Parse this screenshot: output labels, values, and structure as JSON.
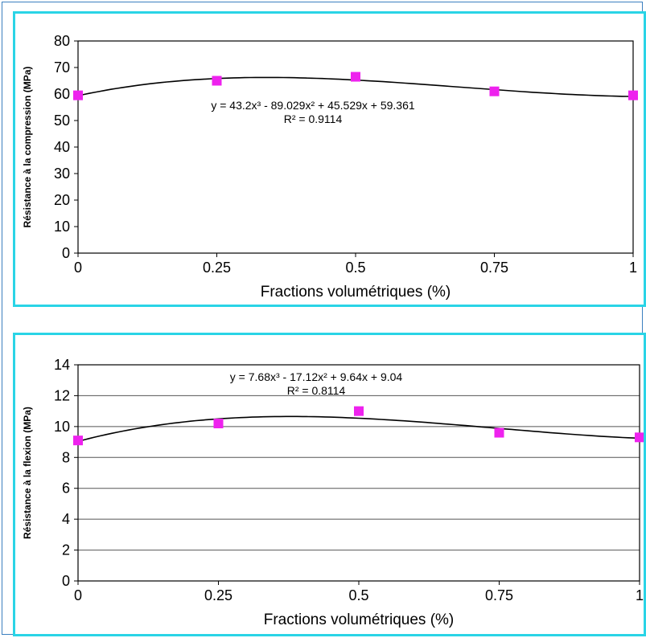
{
  "chart_data": [
    {
      "type": "scatter",
      "xlabel": "Fractions volumétriques (%)",
      "ylabel": "Résistance à la compression (MPa)",
      "xlim": [
        0,
        1
      ],
      "ylim": [
        0,
        80
      ],
      "x_ticks": [
        "0",
        "0.25",
        "0.5",
        "0.75",
        "1"
      ],
      "y_ticks": [
        "0",
        "10",
        "20",
        "30",
        "40",
        "50",
        "60",
        "70",
        "80"
      ],
      "grid": false,
      "marker_color": "#ee22ee",
      "points": [
        {
          "x": 0,
          "y": 59.5
        },
        {
          "x": 0.25,
          "y": 65
        },
        {
          "x": 0.5,
          "y": 66.5
        },
        {
          "x": 0.75,
          "y": 61
        },
        {
          "x": 1,
          "y": 59.5
        }
      ],
      "trendline": {
        "type": "polynomial-3",
        "coefficients": [
          43.2,
          -89.029,
          45.529,
          59.361
        ],
        "equation": "y = 43.2x³ - 89.029x² + 45.529x + 59.361",
        "r2": "R² = 0.9114"
      }
    },
    {
      "type": "scatter",
      "xlabel": "Fractions volumétriques (%)",
      "ylabel": "Résistance à la flexion (MPa)",
      "xlim": [
        0,
        1
      ],
      "ylim": [
        0,
        14
      ],
      "x_ticks": [
        "0",
        "0.25",
        "0.5",
        "0.75",
        "1"
      ],
      "y_ticks": [
        "0",
        "2",
        "4",
        "6",
        "8",
        "10",
        "12",
        "14"
      ],
      "grid": true,
      "marker_color": "#ee22ee",
      "points": [
        {
          "x": 0,
          "y": 9.1
        },
        {
          "x": 0.25,
          "y": 10.2
        },
        {
          "x": 0.5,
          "y": 11
        },
        {
          "x": 0.75,
          "y": 9.6
        },
        {
          "x": 1,
          "y": 9.3
        }
      ],
      "trendline": {
        "type": "polynomial-3",
        "coefficients": [
          7.68,
          -17.12,
          9.64,
          9.04
        ],
        "equation": "y = 7.68x³ - 17.12x² + 9.64x + 9.04",
        "r2": "R² = 0.8114"
      }
    }
  ]
}
